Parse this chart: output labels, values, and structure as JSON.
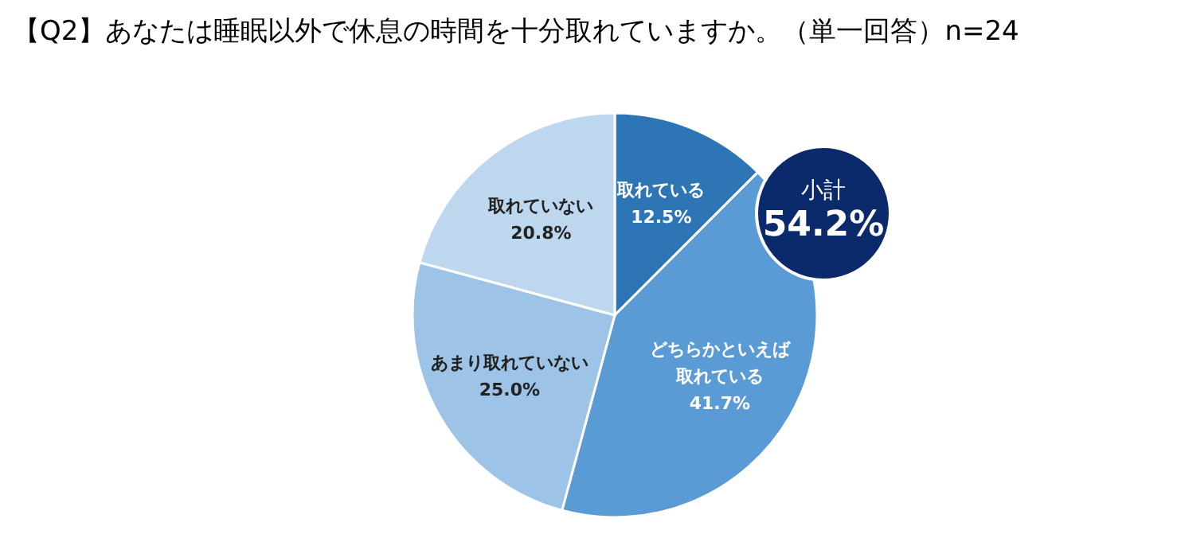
{
  "chart_data": {
    "type": "pie",
    "title": "【Q2】あなたは睡眠以外で休息の時間を十分取れていますか。（単一回答）n=24",
    "categories": [
      "取れている",
      "どちらかといえば取れている",
      "あまり取れていない",
      "取れていない"
    ],
    "values": [
      12.5,
      41.7,
      25.0,
      20.8
    ],
    "colors": [
      "#2e75b6",
      "#5b9bd5",
      "#9dc3e6",
      "#bdd7ee"
    ],
    "value_labels": [
      "12.5%",
      "41.7%",
      "25.0%",
      "20.8%"
    ],
    "annotations": [
      "小計",
      "54.2%"
    ]
  }
}
